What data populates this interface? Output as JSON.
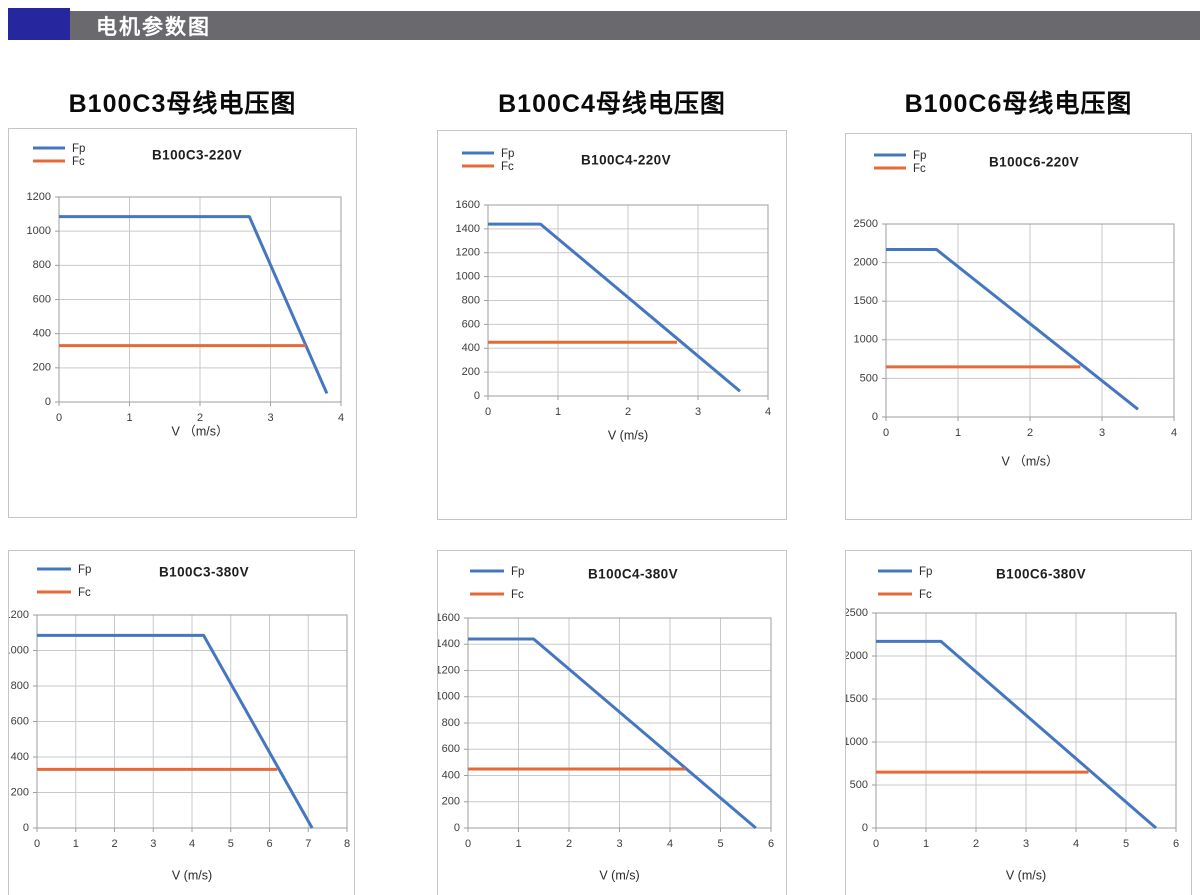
{
  "header": {
    "title": "电机参数图"
  },
  "section_titles": [
    "B100C3母线电压图",
    "B100C4母线电压图",
    "B100C6母线电压图"
  ],
  "colors": {
    "fp_line": "#4577C1",
    "fc_line": "#E56A38",
    "header_accent": "#26269E",
    "header_bar": "#69696E",
    "grid": "#C9C9C9",
    "axis": "#9E9E9E",
    "tick_text": "#3C3C3C",
    "title_text": "#1E1E1E"
  },
  "chart_data": [
    {
      "type": "line",
      "title": "B100C3-220V",
      "xlabel": "V （m/s）",
      "xlim": [
        0,
        4
      ],
      "xtick_step": 1,
      "ylim": [
        0,
        1200
      ],
      "ytick_step": 200,
      "grid": true,
      "legend": [
        "Fp",
        "Fc"
      ],
      "series": [
        {
          "name": "Fp",
          "points": [
            [
              0,
              1085
            ],
            [
              2.7,
              1085
            ],
            [
              3.8,
              50
            ]
          ]
        },
        {
          "name": "Fc",
          "points": [
            [
              0,
              330
            ],
            [
              3.5,
              330
            ]
          ]
        }
      ]
    },
    {
      "type": "line",
      "title": "B100C4-220V",
      "xlabel": "V (m/s)",
      "xlim": [
        0,
        4
      ],
      "xtick_step": 1,
      "ylim": [
        0,
        1600
      ],
      "ytick_step": 200,
      "grid": true,
      "legend": [
        "Fp",
        "Fc"
      ],
      "series": [
        {
          "name": "Fp",
          "points": [
            [
              0,
              1440
            ],
            [
              0.75,
              1440
            ],
            [
              3.6,
              40
            ]
          ]
        },
        {
          "name": "Fc",
          "points": [
            [
              0,
              450
            ],
            [
              2.7,
              450
            ]
          ]
        }
      ]
    },
    {
      "type": "line",
      "title": "B100C6-220V",
      "xlabel": "V （m/s）",
      "xlim": [
        0,
        4
      ],
      "xtick_step": 1,
      "ylim": [
        0,
        2500
      ],
      "ytick_step": 500,
      "grid": true,
      "legend": [
        "Fp",
        "Fc"
      ],
      "series": [
        {
          "name": "Fp",
          "points": [
            [
              0,
              2170
            ],
            [
              0.7,
              2170
            ],
            [
              3.5,
              100
            ]
          ]
        },
        {
          "name": "Fc",
          "points": [
            [
              0,
              650
            ],
            [
              2.7,
              650
            ]
          ]
        }
      ]
    },
    {
      "type": "line",
      "title": "B100C3-380V",
      "xlabel": "V (m/s)",
      "xlim": [
        0,
        8
      ],
      "xtick_step": 1,
      "ylim": [
        0,
        1200
      ],
      "ytick_step": 200,
      "grid": true,
      "legend": [
        "Fp",
        "Fc"
      ],
      "series": [
        {
          "name": "Fp",
          "points": [
            [
              0,
              1085
            ],
            [
              4.3,
              1085
            ],
            [
              7.1,
              0
            ]
          ]
        },
        {
          "name": "Fc",
          "points": [
            [
              0,
              330
            ],
            [
              6.2,
              330
            ]
          ]
        }
      ]
    },
    {
      "type": "line",
      "title": "B100C4-380V",
      "xlabel": "V (m/s)",
      "xlim": [
        0,
        6
      ],
      "xtick_step": 1,
      "ylim": [
        0,
        1600
      ],
      "ytick_step": 200,
      "grid": true,
      "legend": [
        "Fp",
        "Fc"
      ],
      "series": [
        {
          "name": "Fp",
          "points": [
            [
              0,
              1440
            ],
            [
              1.3,
              1440
            ],
            [
              5.7,
              0
            ]
          ]
        },
        {
          "name": "Fc",
          "points": [
            [
              0,
              450
            ],
            [
              4.3,
              450
            ]
          ]
        }
      ]
    },
    {
      "type": "line",
      "title": "B100C6-380V",
      "xlabel": "V (m/s)",
      "xlim": [
        0,
        6
      ],
      "xtick_step": 1,
      "ylim": [
        0,
        2500
      ],
      "ytick_step": 500,
      "grid": true,
      "legend": [
        "Fp",
        "Fc"
      ],
      "series": [
        {
          "name": "Fp",
          "points": [
            [
              0,
              2170
            ],
            [
              1.3,
              2170
            ],
            [
              5.6,
              0
            ]
          ]
        },
        {
          "name": "Fc",
          "points": [
            [
              0,
              650
            ],
            [
              4.25,
              650
            ]
          ]
        }
      ]
    }
  ]
}
